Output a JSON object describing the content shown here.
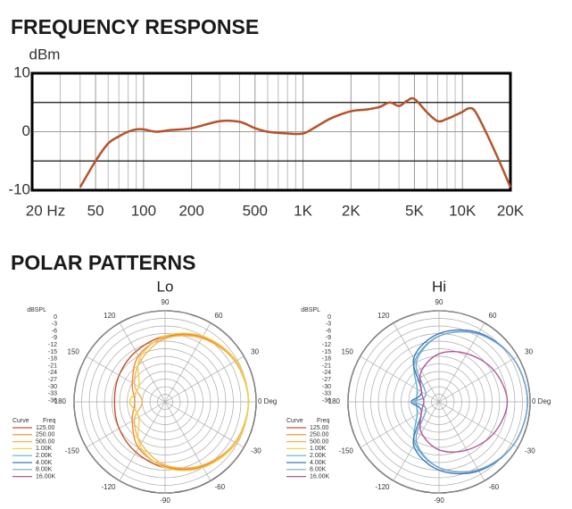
{
  "section_title": "POLAR PATTERNS",
  "chart_data": [
    {
      "type": "line",
      "title": "FREQUENCY RESPONSE",
      "ylabel": "dBm",
      "xscale": "log",
      "x": [
        40,
        50,
        60,
        70,
        80,
        90,
        100,
        120,
        150,
        200,
        300,
        400,
        500,
        600,
        800,
        1000,
        1200,
        1500,
        2000,
        2500,
        3000,
        3500,
        4000,
        4500,
        5000,
        6000,
        7000,
        8000,
        9000,
        10000,
        11000,
        12000,
        14000,
        17000,
        20000
      ],
      "values": [
        -9.5,
        -5,
        -2,
        -0.8,
        0,
        0.4,
        0.4,
        0,
        0.3,
        0.6,
        1.8,
        1.7,
        0.6,
        0,
        -0.3,
        -0.3,
        0.8,
        2.3,
        3.5,
        3.8,
        4.2,
        5,
        4.4,
        5.3,
        5.6,
        3.3,
        1.8,
        2.2,
        2.8,
        3.4,
        4,
        3.5,
        0,
        -5,
        -9.5
      ],
      "color": "#b5532a",
      "xlim": [
        20,
        20000
      ],
      "ylim": [
        -10,
        10
      ],
      "yticks": [
        10,
        0,
        -10
      ],
      "xticks": [
        {
          "value": 20,
          "label": "20 Hz"
        },
        50,
        100,
        200,
        500,
        {
          "value": 1000,
          "label": "1K"
        },
        {
          "value": 2000,
          "label": "2K"
        },
        {
          "value": 5000,
          "label": "5K"
        },
        {
          "value": 10000,
          "label": "10K"
        },
        {
          "value": 20000,
          "label": "20K"
        }
      ],
      "xgrid_minor": [
        30,
        40,
        60,
        70,
        80,
        90,
        300,
        400,
        600,
        700,
        800,
        900,
        3000,
        4000,
        6000,
        7000,
        8000,
        9000
      ],
      "ref_lines": [
        5,
        -5
      ],
      "grid": true
    },
    {
      "type": "polar",
      "title": "Lo",
      "rlabel": "dBSPL",
      "legend_title": [
        "Curve",
        "Freq"
      ],
      "theta": [
        0,
        30,
        60,
        90,
        120,
        150,
        180,
        210,
        240,
        270,
        300,
        330
      ],
      "rlim": [
        -36,
        0
      ],
      "rticks": [
        0,
        -3,
        -6,
        -9,
        -12,
        -15,
        -18,
        -21,
        -24,
        -27,
        -30,
        -33,
        -36
      ],
      "thetaticks": [
        90,
        60,
        30,
        {
          "value": 0,
          "label": "0 Deg"
        },
        -30,
        -60,
        -90,
        -120,
        -150,
        180,
        150,
        120
      ],
      "series": [
        {
          "name": "125.00",
          "color": "#c8502a",
          "values": [
            -3,
            -4,
            -6.5,
            -10,
            -13,
            -15,
            -16,
            -15,
            -13,
            -10,
            -6.5,
            -4
          ]
        },
        {
          "name": "250.00",
          "color": "#ee8a34",
          "values": [
            -3,
            -4,
            -6.5,
            -10.5,
            -15,
            -21,
            -24,
            -21,
            -15,
            -10.5,
            -6.5,
            -4
          ]
        },
        {
          "name": "500.00",
          "color": "#f6b450",
          "values": [
            -3,
            -4,
            -7,
            -11,
            -17,
            -22,
            -27,
            -22,
            -17,
            -11,
            -7,
            -4
          ]
        },
        {
          "name": "1.00K",
          "color": "#f2d24a",
          "values": [
            -3,
            -3.5,
            -6,
            -10,
            -16,
            -24,
            -22,
            -24,
            -16,
            -10,
            -6,
            -3.5
          ]
        },
        {
          "name": "2.00K",
          "color": "#58b4c8",
          "values": [
            null,
            null,
            null,
            null,
            null,
            null,
            null,
            null,
            null,
            null,
            null,
            null
          ]
        },
        {
          "name": "4.00K",
          "color": "#3a78b8",
          "values": [
            null,
            null,
            null,
            null,
            null,
            null,
            null,
            null,
            null,
            null,
            null,
            null
          ]
        },
        {
          "name": "8.00K",
          "color": "#7aa4d4",
          "values": [
            null,
            null,
            null,
            null,
            null,
            null,
            null,
            null,
            null,
            null,
            null,
            null
          ]
        },
        {
          "name": "16.00K",
          "color": "#b0589a",
          "values": [
            null,
            null,
            null,
            null,
            null,
            null,
            null,
            null,
            null,
            null,
            null,
            null
          ]
        }
      ]
    },
    {
      "type": "polar",
      "title": "Hi",
      "rlabel": "dBSPL",
      "legend_title": [
        "Curve",
        "Freq"
      ],
      "theta": [
        0,
        30,
        60,
        90,
        120,
        150,
        180,
        210,
        240,
        270,
        300,
        330
      ],
      "rlim": [
        -36,
        0
      ],
      "rticks": [
        0,
        -3,
        -6,
        -9,
        -12,
        -15,
        -18,
        -21,
        -24,
        -27,
        -30,
        -33,
        -36
      ],
      "thetaticks": [
        90,
        60,
        30,
        {
          "value": 0,
          "label": "0 Deg"
        },
        -30,
        -60,
        -90,
        -120,
        -150,
        180,
        150,
        120
      ],
      "series": [
        {
          "name": "125.00",
          "color": "#c8502a",
          "values": [
            null,
            null,
            null,
            null,
            null,
            null,
            null,
            null,
            null,
            null,
            null,
            null
          ]
        },
        {
          "name": "250.00",
          "color": "#ee8a34",
          "values": [
            null,
            null,
            null,
            null,
            null,
            null,
            null,
            null,
            null,
            null,
            null,
            null
          ]
        },
        {
          "name": "500.00",
          "color": "#f6b450",
          "values": [
            null,
            null,
            null,
            null,
            null,
            null,
            null,
            null,
            null,
            null,
            null,
            null
          ]
        },
        {
          "name": "1.00K",
          "color": "#f2d24a",
          "values": [
            null,
            null,
            null,
            null,
            null,
            null,
            null,
            null,
            null,
            null,
            null,
            null
          ]
        },
        {
          "name": "2.00K",
          "color": "#58b4c8",
          "values": [
            -1,
            -2,
            -5,
            -10,
            -17,
            -26,
            -27,
            -26,
            -17,
            -10,
            -5,
            -2
          ]
        },
        {
          "name": "4.00K",
          "color": "#3a78b8",
          "values": [
            -1,
            -2,
            -4.5,
            -9,
            -16,
            -28,
            -25,
            -28,
            -16,
            -9,
            -4.5,
            -2
          ]
        },
        {
          "name": "8.00K",
          "color": "#7aa4d4",
          "values": [
            -1,
            -2,
            -5,
            -10,
            -18,
            -30,
            -26,
            -30,
            -18,
            -10,
            -5,
            -2
          ]
        },
        {
          "name": "16.00K",
          "color": "#b0589a",
          "values": [
            -9,
            -11,
            -14,
            -17,
            -22,
            -28,
            -30,
            -28,
            -22,
            -17,
            -14,
            -11
          ]
        }
      ]
    }
  ]
}
